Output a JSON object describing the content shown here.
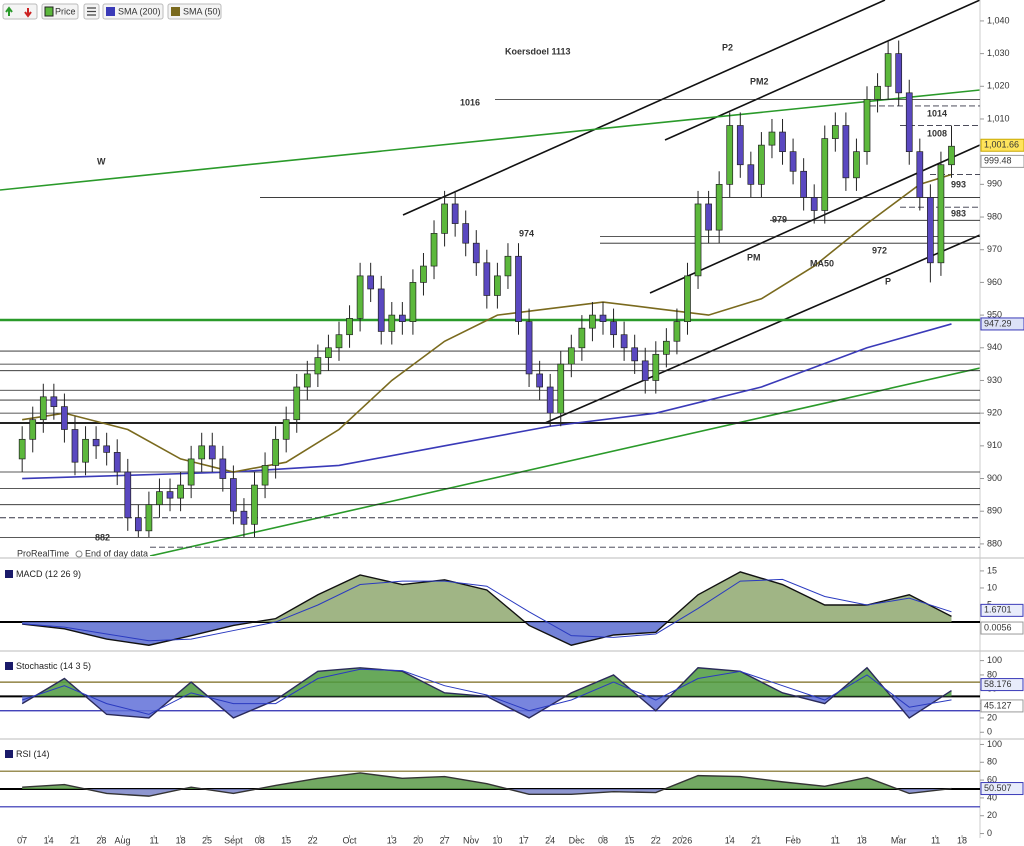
{
  "chart_data": [
    {
      "type": "candlestick",
      "name": "Price",
      "source": "ProRealTime",
      "note": "End of day data",
      "up_color": "#5cb83c",
      "down_color": "#5a48c0",
      "xlim": [
        -4.2,
        181.4
      ],
      "xticks": [
        {
          "value": 0,
          "label": "07"
        },
        {
          "value": 5,
          "label": "14"
        },
        {
          "value": 10,
          "label": "21"
        },
        {
          "value": 15,
          "label": "28"
        },
        {
          "value": 19,
          "label": "Aug"
        },
        {
          "value": 25,
          "label": "11"
        },
        {
          "value": 30,
          "label": "18"
        },
        {
          "value": 35,
          "label": "25"
        },
        {
          "value": 40,
          "label": "Sept"
        },
        {
          "value": 45,
          "label": "08"
        },
        {
          "value": 50,
          "label": "15"
        },
        {
          "value": 55,
          "label": "22"
        },
        {
          "value": 62,
          "label": "Oct"
        },
        {
          "value": 70,
          "label": "13"
        },
        {
          "value": 75,
          "label": "20"
        },
        {
          "value": 80,
          "label": "27"
        },
        {
          "value": 85,
          "label": "Nov"
        },
        {
          "value": 90,
          "label": "10"
        },
        {
          "value": 95,
          "label": "17"
        },
        {
          "value": 100,
          "label": "24"
        },
        {
          "value": 105,
          "label": "Dec"
        },
        {
          "value": 110,
          "label": "08"
        },
        {
          "value": 115,
          "label": "15"
        },
        {
          "value": 120,
          "label": "22"
        },
        {
          "value": 125,
          "label": "2026"
        },
        {
          "value": 134,
          "label": "14"
        },
        {
          "value": 139,
          "label": "21"
        },
        {
          "value": 146,
          "label": "Feb"
        },
        {
          "value": 154,
          "label": "11"
        },
        {
          "value": 159,
          "label": "18"
        },
        {
          "value": 166,
          "label": "Mar"
        },
        {
          "value": 173,
          "label": "11"
        },
        {
          "value": 178,
          "label": "18"
        }
      ],
      "ylim": [
        876.3,
        1046.4
      ],
      "yticks": [
        {
          "value": 1040,
          "label": "1,040"
        },
        {
          "value": 1030,
          "label": "1,030"
        },
        {
          "value": 1020,
          "label": "1,020"
        },
        {
          "value": 1010,
          "label": "1,010"
        },
        990,
        980,
        970,
        960,
        950,
        940,
        930,
        920,
        910,
        900,
        890,
        880
      ],
      "x": [
        0,
        2,
        4,
        6,
        8,
        10,
        12,
        14,
        16,
        18,
        20,
        22,
        24,
        26,
        28,
        30,
        32,
        34,
        36,
        38,
        40,
        42,
        44,
        46,
        48,
        50,
        52,
        54,
        56,
        58,
        60,
        62,
        64,
        66,
        68,
        70,
        72,
        74,
        76,
        78,
        80,
        82,
        84,
        86,
        88,
        90,
        92,
        94,
        96,
        98,
        100,
        102,
        104,
        106,
        108,
        110,
        112,
        114,
        116,
        118,
        120,
        122,
        124,
        126,
        128,
        130,
        132,
        134,
        136,
        138,
        140,
        142,
        144,
        146,
        148,
        150,
        152,
        154,
        156,
        158,
        160,
        162,
        164,
        166,
        168,
        170,
        172,
        174,
        176
      ],
      "open": [
        906,
        912,
        918,
        925,
        922,
        915,
        905,
        912,
        910,
        908,
        902,
        888,
        884,
        892,
        896,
        894,
        898,
        906,
        910,
        906,
        900,
        890,
        886,
        898,
        904,
        912,
        918,
        928,
        932,
        937,
        940,
        944,
        949,
        962,
        958,
        945,
        950,
        948,
        960,
        965,
        975,
        984,
        978,
        972,
        966,
        956,
        962,
        968,
        948,
        932,
        928,
        920,
        935,
        940,
        946,
        950,
        948,
        944,
        940,
        936,
        930,
        938,
        942,
        948,
        962,
        984,
        976,
        990,
        1008,
        996,
        990,
        1002,
        1006,
        1000,
        994,
        986,
        982,
        1004,
        1008,
        992,
        1000,
        1016,
        1020,
        1030,
        1018,
        1000,
        986,
        966,
        996
      ],
      "high": [
        916,
        922,
        929,
        929,
        926,
        919,
        916,
        916,
        914,
        912,
        906,
        892,
        896,
        900,
        900,
        902,
        910,
        914,
        914,
        910,
        904,
        894,
        902,
        908,
        916,
        922,
        932,
        936,
        941,
        944,
        948,
        953,
        966,
        966,
        962,
        954,
        954,
        964,
        969,
        979,
        988,
        988,
        982,
        976,
        970,
        966,
        972,
        972,
        952,
        936,
        932,
        939,
        944,
        950,
        954,
        954,
        952,
        948,
        944,
        940,
        942,
        946,
        952,
        966,
        988,
        988,
        994,
        1012,
        1012,
        1000,
        1006,
        1010,
        1010,
        1004,
        998,
        990,
        1008,
        1012,
        1012,
        1004,
        1020,
        1024,
        1034,
        1034,
        1022,
        1004,
        990,
        1000,
        1008
      ],
      "low": [
        902,
        908,
        914,
        918,
        911,
        901,
        901,
        906,
        904,
        898,
        884,
        882,
        882,
        888,
        890,
        890,
        894,
        902,
        902,
        896,
        886,
        882,
        882,
        894,
        900,
        908,
        914,
        924,
        928,
        933,
        936,
        940,
        945,
        954,
        941,
        941,
        944,
        944,
        956,
        961,
        971,
        974,
        968,
        962,
        952,
        952,
        958,
        944,
        928,
        924,
        916,
        916,
        931,
        936,
        942,
        944,
        940,
        936,
        932,
        926,
        926,
        934,
        938,
        944,
        958,
        972,
        972,
        986,
        992,
        986,
        986,
        998,
        996,
        990,
        982,
        978,
        978,
        1000,
        988,
        988,
        996,
        1012,
        1016,
        1014,
        996,
        982,
        960,
        962,
        992
      ],
      "close": [
        912,
        918,
        925,
        922,
        915,
        905,
        912,
        910,
        908,
        902,
        888,
        884,
        892,
        896,
        894,
        898,
        906,
        910,
        906,
        900,
        890,
        886,
        898,
        904,
        912,
        918,
        928,
        932,
        937,
        940,
        944,
        949,
        962,
        958,
        945,
        950,
        948,
        960,
        965,
        975,
        984,
        978,
        972,
        966,
        956,
        962,
        968,
        948,
        932,
        928,
        920,
        935,
        940,
        946,
        950,
        948,
        944,
        940,
        936,
        930,
        938,
        942,
        948,
        962,
        984,
        976,
        990,
        1008,
        996,
        990,
        1002,
        1006,
        1000,
        994,
        986,
        982,
        1004,
        1008,
        992,
        1000,
        1016,
        1020,
        1030,
        1018,
        1000,
        986,
        966,
        996,
        1001.66
      ],
      "series": [
        {
          "name": "SMA (200)",
          "color": "#3a3ab8",
          "x": [
            0,
            20,
            40,
            60,
            80,
            100,
            120,
            140,
            160,
            176
          ],
          "values": [
            900,
            901,
            902,
            904,
            910,
            916,
            920,
            928,
            940,
            947.29
          ]
        },
        {
          "name": "SMA (50)",
          "color": "#7a6a1e",
          "x": [
            0,
            8,
            20,
            30,
            40,
            50,
            60,
            70,
            80,
            90,
            100,
            110,
            120,
            130,
            140,
            150,
            160,
            170,
            176
          ],
          "values": [
            918,
            920,
            915,
            906,
            902,
            905,
            915,
            930,
            942,
            950,
            952,
            954,
            952,
            950,
            955,
            965,
            978,
            990,
            993
          ]
        }
      ],
      "levels": [
        1016,
        986,
        979,
        974,
        972,
        939,
        935,
        933,
        927,
        924,
        920,
        917,
        902,
        897,
        892,
        882
      ],
      "dashed_levels": [
        1014,
        1008,
        993,
        983,
        888,
        879
      ],
      "green_level": 948.5,
      "price_notes": [
        1016,
        974,
        979,
        972,
        882,
        1014,
        1008,
        993,
        983
      ],
      "annotations": [
        "Koersdoel 1113",
        "W",
        "P2",
        "PM2",
        "PM",
        "P",
        "MA50"
      ],
      "price_labels": [
        {
          "value": 1001.66,
          "label": "1,001.66"
        },
        999.48,
        947.29
      ]
    },
    {
      "type": "macd",
      "title": "MACD (12 26 9)",
      "ylim": [
        -8.2,
        18.2
      ],
      "yticks": [
        15,
        10,
        5
      ],
      "x": [
        0,
        8,
        16,
        24,
        32,
        40,
        48,
        56,
        64,
        72,
        80,
        88,
        96,
        104,
        112,
        120,
        128,
        136,
        144,
        152,
        160,
        168,
        176
      ],
      "values": [
        -0.6,
        -2,
        -5,
        -6.8,
        -4,
        -1,
        1,
        8,
        13.8,
        11,
        12.4,
        9.4,
        -1,
        -6.8,
        -3.8,
        -3,
        8,
        14.7,
        11,
        5,
        5,
        8,
        1.6701
      ],
      "signal": [
        -0.5,
        -1.5,
        -3.5,
        -5.5,
        -5,
        -2.5,
        0,
        5,
        11,
        12,
        12,
        10.5,
        3,
        -4,
        -4.5,
        -3.5,
        4,
        12,
        12.5,
        7.5,
        5,
        7,
        3
      ],
      "levels": [
        0
      ],
      "level_colors": [
        "#000000"
      ],
      "last_labels": [
        1.6701,
        0.0056
      ]
    },
    {
      "type": "stochastic",
      "title": "Stochastic (14 3 5)",
      "ylim": [
        -8,
        112
      ],
      "yticks": [
        100,
        80,
        60,
        40,
        20,
        0
      ],
      "x": [
        0,
        8,
        16,
        24,
        32,
        40,
        48,
        56,
        64,
        72,
        80,
        88,
        96,
        104,
        112,
        120,
        128,
        136,
        144,
        152,
        160,
        168,
        176
      ],
      "values": [
        40,
        75,
        25,
        20,
        70,
        20,
        45,
        85,
        90,
        85,
        55,
        50,
        20,
        55,
        80,
        30,
        90,
        85,
        55,
        40,
        90,
        20,
        58.176
      ],
      "signal": [
        45,
        65,
        40,
        25,
        55,
        40,
        40,
        75,
        88,
        86,
        65,
        52,
        30,
        45,
        70,
        45,
        75,
        85,
        65,
        45,
        80,
        35,
        45.127
      ],
      "levels": [
        70,
        50,
        30
      ],
      "level_colors": [
        "#7a6a1e",
        "#000000",
        "#2a2ab0"
      ],
      "last_labels": [
        58.176,
        45.127
      ]
    },
    {
      "type": "rsi",
      "title": "RSI (14)",
      "ylim": [
        -5,
        105
      ],
      "yticks": [
        100,
        80,
        60,
        40,
        20,
        0
      ],
      "x": [
        0,
        8,
        16,
        24,
        32,
        40,
        48,
        56,
        64,
        72,
        80,
        88,
        96,
        104,
        112,
        120,
        128,
        136,
        144,
        152,
        160,
        168,
        176
      ],
      "values": [
        52,
        55,
        45,
        42,
        52,
        45,
        54,
        62,
        68,
        62,
        64,
        56,
        44,
        44,
        47,
        46,
        65,
        64,
        58,
        53,
        63,
        45,
        50.507
      ],
      "levels": [
        70,
        50,
        30
      ],
      "level_colors": [
        "#7a6a1e",
        "#000000",
        "#2a2ab0"
      ],
      "last_labels": [
        50.507
      ]
    }
  ]
}
